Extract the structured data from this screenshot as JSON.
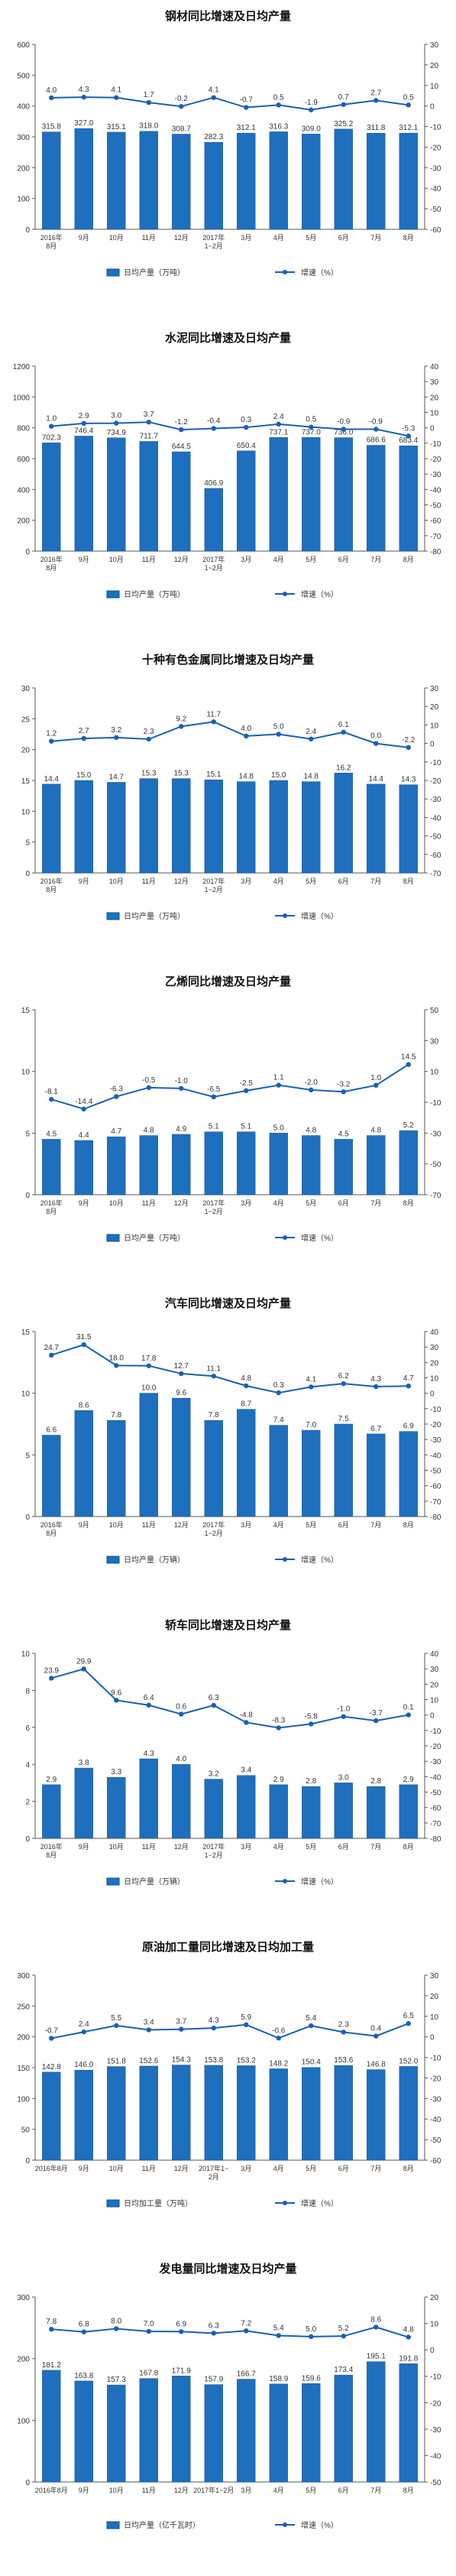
{
  "colors": {
    "bar": "#1f6fbf",
    "bar_edge": "#0b4f94",
    "line": "#1a5fb4",
    "axis": "#555555",
    "grid": "#d9d9d9",
    "title": "#111111"
  },
  "chart_data": [
    {
      "type": "bar+line",
      "title": "钢材同比增速及日均产量",
      "categories": [
        "2016年\n8月",
        "9月",
        "10月",
        "11月",
        "12月",
        "2017年\n1~2月",
        "3月",
        "4月",
        "5月",
        "6月",
        "7月",
        "8月"
      ],
      "ylim": [
        0,
        600
      ],
      "yticks": [
        0,
        100,
        200,
        300,
        400,
        500,
        600
      ],
      "y2lim": [
        -60,
        30
      ],
      "y2ticks": [
        30,
        20,
        10,
        0,
        -10,
        -20,
        -30,
        -40,
        -50,
        -60
      ],
      "grid": false,
      "legend_position": "bottom",
      "series": [
        {
          "name": "日均产量（万吨）",
          "kind": "bar",
          "axis": "left",
          "values": [
            315.8,
            327.0,
            315.1,
            318.0,
            308.7,
            282.3,
            312.1,
            316.3,
            309.0,
            325.2,
            311.8,
            312.1
          ],
          "labels": [
            "315.8",
            "327.0",
            "315.1",
            "318.0",
            "308.7",
            "282.3",
            "312.1",
            "316.3",
            "309.0",
            "325.2",
            "311.8",
            "312.1"
          ]
        },
        {
          "name": "增速（%）",
          "kind": "line",
          "axis": "right",
          "values": [
            4.0,
            4.3,
            4.1,
            1.7,
            -0.2,
            4.1,
            -0.7,
            0.5,
            -1.9,
            0.7,
            2.7,
            0.5
          ],
          "labels": [
            "4.0",
            "4.3",
            "4.1",
            "1.7",
            "-0.2",
            "4.1",
            "-0.7",
            "0.5",
            "-1.9",
            "0.7",
            "2.7",
            "0.5"
          ]
        }
      ]
    },
    {
      "type": "bar+line",
      "title": "水泥同比增速及日均产量",
      "categories": [
        "2016年\n8月",
        "9月",
        "10月",
        "11月",
        "12月",
        "2017年\n1~2月",
        "3月",
        "4月",
        "5月",
        "6月",
        "7月",
        "8月"
      ],
      "ylim": [
        0,
        1200
      ],
      "yticks": [
        0,
        200,
        400,
        600,
        800,
        1000,
        1200
      ],
      "y2lim": [
        -80,
        40
      ],
      "y2ticks": [
        40,
        30,
        20,
        10,
        0,
        -10,
        -20,
        -30,
        -40,
        -50,
        -60,
        -70,
        -80
      ],
      "grid": false,
      "legend_position": "bottom",
      "series": [
        {
          "name": "日均产量（万吨）",
          "kind": "bar",
          "axis": "left",
          "values": [
            702.3,
            746.4,
            734.9,
            711.7,
            644.5,
            406.9,
            650.4,
            737.1,
            737.0,
            736.0,
            686.6,
            683.4
          ],
          "labels": [
            "702.3",
            "746.4",
            "734.9",
            "711.7",
            "644.5",
            "406.9",
            "650.4",
            "737.1",
            "737.0",
            "736.0",
            "686.6",
            "683.4"
          ]
        },
        {
          "name": "增速（%）",
          "kind": "line",
          "axis": "right",
          "values": [
            1.0,
            2.9,
            3.0,
            3.7,
            -1.2,
            -0.4,
            0.3,
            2.4,
            0.5,
            -0.9,
            -0.9,
            -5.3
          ],
          "labels": [
            "1.0",
            "2.9",
            "3.0",
            "3.7",
            "-1.2",
            "-0.4",
            "0.3",
            "2.4",
            "0.5",
            "-0.9",
            "-0.9",
            "-5.3"
          ]
        }
      ]
    },
    {
      "type": "bar+line",
      "title": "十种有色金属同比增速及日均产量",
      "categories": [
        "2016年\n8月",
        "9月",
        "10月",
        "11月",
        "12月",
        "2017年\n1~2月",
        "3月",
        "4月",
        "5月",
        "6月",
        "7月",
        "8月"
      ],
      "ylim": [
        0,
        30
      ],
      "yticks": [
        0,
        5,
        10,
        15,
        20,
        25,
        30
      ],
      "y2lim": [
        -70,
        30
      ],
      "y2ticks": [
        30,
        20,
        10,
        0,
        -10,
        -20,
        -30,
        -40,
        -50,
        -60,
        -70
      ],
      "grid": false,
      "legend_position": "bottom",
      "series": [
        {
          "name": "日均产量（万吨）",
          "kind": "bar",
          "axis": "left",
          "values": [
            14.4,
            15.0,
            14.7,
            15.3,
            15.3,
            15.1,
            14.8,
            15.0,
            14.8,
            16.2,
            14.4,
            14.3
          ],
          "labels": [
            "14.4",
            "15.0",
            "14.7",
            "15.3",
            "15.3",
            "15.1",
            "14.8",
            "15.0",
            "14.8",
            "16.2",
            "14.4",
            "14.3"
          ]
        },
        {
          "name": "增速（%）",
          "kind": "line",
          "axis": "right",
          "values": [
            1.2,
            2.7,
            3.2,
            2.3,
            9.2,
            11.7,
            4.0,
            5.0,
            2.4,
            6.1,
            0.0,
            -2.2
          ],
          "labels": [
            "1.2",
            "2.7",
            "3.2",
            "2.3",
            "9.2",
            "11.7",
            "4.0",
            "5.0",
            "2.4",
            "6.1",
            "0.0",
            "-2.2"
          ]
        }
      ]
    },
    {
      "type": "bar+line",
      "title": "乙烯同比增速及日均产量",
      "categories": [
        "2016年\n8月",
        "9月",
        "10月",
        "11月",
        "12月",
        "2017年\n1~2月",
        "3月",
        "4月",
        "5月",
        "6月",
        "7月",
        "8月"
      ],
      "ylim": [
        0,
        15
      ],
      "yticks": [
        0,
        5,
        10,
        15
      ],
      "y2lim": [
        -70,
        50
      ],
      "y2ticks": [
        50,
        30,
        10,
        -10,
        -30,
        -50,
        -70
      ],
      "grid": false,
      "legend_position": "bottom",
      "series": [
        {
          "name": "日均产量（万吨）",
          "kind": "bar",
          "axis": "left",
          "values": [
            4.5,
            4.4,
            4.7,
            4.8,
            4.9,
            5.1,
            5.1,
            5.0,
            4.8,
            4.5,
            4.8,
            5.2
          ],
          "labels": [
            "4.5",
            "4.4",
            "4.7",
            "4.8",
            "4.9",
            "5.1",
            "5.1",
            "5.0",
            "4.8",
            "4.5",
            "4.8",
            "5.2"
          ]
        },
        {
          "name": "增速（%）",
          "kind": "line",
          "axis": "right",
          "values": [
            -8.1,
            -14.4,
            -6.3,
            -0.5,
            -1.0,
            -6.5,
            -2.5,
            1.1,
            -2.0,
            -3.2,
            1.0,
            14.5
          ],
          "labels": [
            "-8.1",
            "-14.4",
            "-6.3",
            "-0.5",
            "-1.0",
            "-6.5",
            "-2.5",
            "1.1",
            "-2.0",
            "-3.2",
            "1.0",
            "14.5"
          ]
        }
      ]
    },
    {
      "type": "bar+line",
      "title": "汽车同比增速及日均产量",
      "categories": [
        "2016年\n8月",
        "9月",
        "10月",
        "11月",
        "12月",
        "2017年\n1~2月",
        "3月",
        "4月",
        "5月",
        "6月",
        "7月",
        "8月"
      ],
      "ylim": [
        0,
        15
      ],
      "yticks": [
        0,
        5,
        10,
        15
      ],
      "y2lim": [
        -80,
        40
      ],
      "y2ticks": [
        40,
        30,
        20,
        10,
        0,
        -10,
        -20,
        -30,
        -40,
        -50,
        -60,
        -70,
        -80
      ],
      "grid": false,
      "legend_position": "bottom",
      "series": [
        {
          "name": "日均产量（万辆）",
          "kind": "bar",
          "axis": "left",
          "values": [
            6.6,
            8.6,
            7.8,
            10.0,
            9.6,
            7.8,
            8.7,
            7.4,
            7.0,
            7.5,
            6.7,
            6.9
          ],
          "labels": [
            "6.6",
            "8.6",
            "7.8",
            "10.0",
            "9.6",
            "7.8",
            "8.7",
            "7.4",
            "7.0",
            "7.5",
            "6.7",
            "6.9"
          ]
        },
        {
          "name": "增速（%）",
          "kind": "line",
          "axis": "right",
          "values": [
            24.7,
            31.5,
            18.0,
            17.8,
            12.7,
            11.1,
            4.8,
            0.3,
            4.1,
            6.2,
            4.3,
            4.7
          ],
          "labels": [
            "24.7",
            "31.5",
            "18.0",
            "17.8",
            "12.7",
            "11.1",
            "4.8",
            "0.3",
            "4.1",
            "6.2",
            "4.3",
            "4.7"
          ]
        }
      ]
    },
    {
      "type": "bar+line",
      "title": "轿车同比增速及日均产量",
      "categories": [
        "2016年\n8月",
        "9月",
        "10月",
        "11月",
        "12月",
        "2017年\n1~2月",
        "3月",
        "4月",
        "5月",
        "6月",
        "7月",
        "8月"
      ],
      "ylim": [
        0,
        10
      ],
      "yticks": [
        0,
        2,
        4,
        6,
        8,
        10
      ],
      "y2lim": [
        -80,
        40
      ],
      "y2ticks": [
        40,
        30,
        20,
        10,
        0,
        -10,
        -20,
        -30,
        -40,
        -50,
        -60,
        -70,
        -80
      ],
      "grid": false,
      "legend_position": "bottom",
      "series": [
        {
          "name": "日均产量（万辆）",
          "kind": "bar",
          "axis": "left",
          "values": [
            2.9,
            3.8,
            3.3,
            4.3,
            4.0,
            3.2,
            3.4,
            2.9,
            2.8,
            3.0,
            2.8,
            2.9
          ],
          "labels": [
            "2.9",
            "3.8",
            "3.3",
            "4.3",
            "4.0",
            "3.2",
            "3.4",
            "2.9",
            "2.8",
            "3.0",
            "2.8",
            "2.9"
          ]
        },
        {
          "name": "增速（%）",
          "kind": "line",
          "axis": "right",
          "values": [
            23.9,
            29.9,
            9.6,
            6.4,
            0.6,
            6.3,
            -4.8,
            -8.3,
            -5.8,
            -1.0,
            -3.7,
            0.1
          ],
          "labels": [
            "23.9",
            "29.9",
            "9.6",
            "6.4",
            "0.6",
            "6.3",
            "-4.8",
            "-8.3",
            "-5.8",
            "-1.0",
            "-3.7",
            "0.1"
          ]
        }
      ]
    },
    {
      "type": "bar+line",
      "title": "原油加工量同比增速及日均加工量",
      "categories": [
        "2016年8月",
        "9月",
        "10月",
        "11月",
        "12月",
        "2017年1~\n2月",
        "3月",
        "4月",
        "5月",
        "6月",
        "7月",
        "8月"
      ],
      "ylim": [
        0,
        300
      ],
      "yticks": [
        0,
        50,
        100,
        150,
        200,
        250,
        300
      ],
      "y2lim": [
        -60,
        30
      ],
      "y2ticks": [
        30,
        20,
        10,
        0,
        -10,
        -20,
        -30,
        -40,
        -50,
        -60
      ],
      "grid": false,
      "legend_position": "bottom",
      "series": [
        {
          "name": "日均加工量（万吨）",
          "kind": "bar",
          "axis": "left",
          "values": [
            142.8,
            146.0,
            151.8,
            152.6,
            154.3,
            153.8,
            153.2,
            148.2,
            150.4,
            153.6,
            146.8,
            152.0
          ],
          "labels": [
            "142.8",
            "146.0",
            "151.8",
            "152.6",
            "154.3",
            "153.8",
            "153.2",
            "148.2",
            "150.4",
            "153.6",
            "146.8",
            "152.0"
          ]
        },
        {
          "name": "增速（%）",
          "kind": "line",
          "axis": "right",
          "values": [
            -0.7,
            2.4,
            5.5,
            3.4,
            3.7,
            4.3,
            5.9,
            -0.6,
            5.4,
            2.3,
            0.4,
            6.5
          ],
          "labels": [
            "-0.7",
            "2.4",
            "5.5",
            "3.4",
            "3.7",
            "4.3",
            "5.9",
            "-0.6",
            "5.4",
            "2.3",
            "0.4",
            "6.5"
          ]
        }
      ]
    },
    {
      "type": "bar+line",
      "title": "发电量同比增速及日均产量",
      "categories": [
        "2016年8月",
        "9月",
        "10月",
        "11月",
        "12月",
        "2017年1~2月",
        "3月",
        "4月",
        "5月",
        "6月",
        "7月",
        "8月"
      ],
      "ylim": [
        0,
        300
      ],
      "yticks": [
        0,
        100,
        200,
        300
      ],
      "y2lim": [
        -50,
        20
      ],
      "y2ticks": [
        20,
        10,
        0,
        -10,
        -20,
        -30,
        -40,
        -50
      ],
      "grid": false,
      "legend_position": "bottom",
      "series": [
        {
          "name": "日均产量（亿千瓦时）",
          "kind": "bar",
          "axis": "left",
          "values": [
            181.2,
            163.8,
            157.3,
            167.8,
            171.9,
            157.9,
            166.7,
            158.9,
            159.6,
            173.4,
            195.1,
            191.8
          ],
          "labels": [
            "181.2",
            "163.8",
            "157.3",
            "167.8",
            "171.9",
            "157.9",
            "166.7",
            "158.9",
            "159.6",
            "173.4",
            "195.1",
            "191.8"
          ]
        },
        {
          "name": "增速（%）",
          "kind": "line",
          "axis": "right",
          "values": [
            7.8,
            6.8,
            8.0,
            7.0,
            6.9,
            6.3,
            7.2,
            5.4,
            5.0,
            5.2,
            8.6,
            4.8
          ],
          "labels": [
            "7.8",
            "6.8",
            "8.0",
            "7.0",
            "6.9",
            "6.3",
            "7.2",
            "5.4",
            "5.0",
            "5.2",
            "8.6",
            "4.8"
          ]
        }
      ]
    }
  ]
}
